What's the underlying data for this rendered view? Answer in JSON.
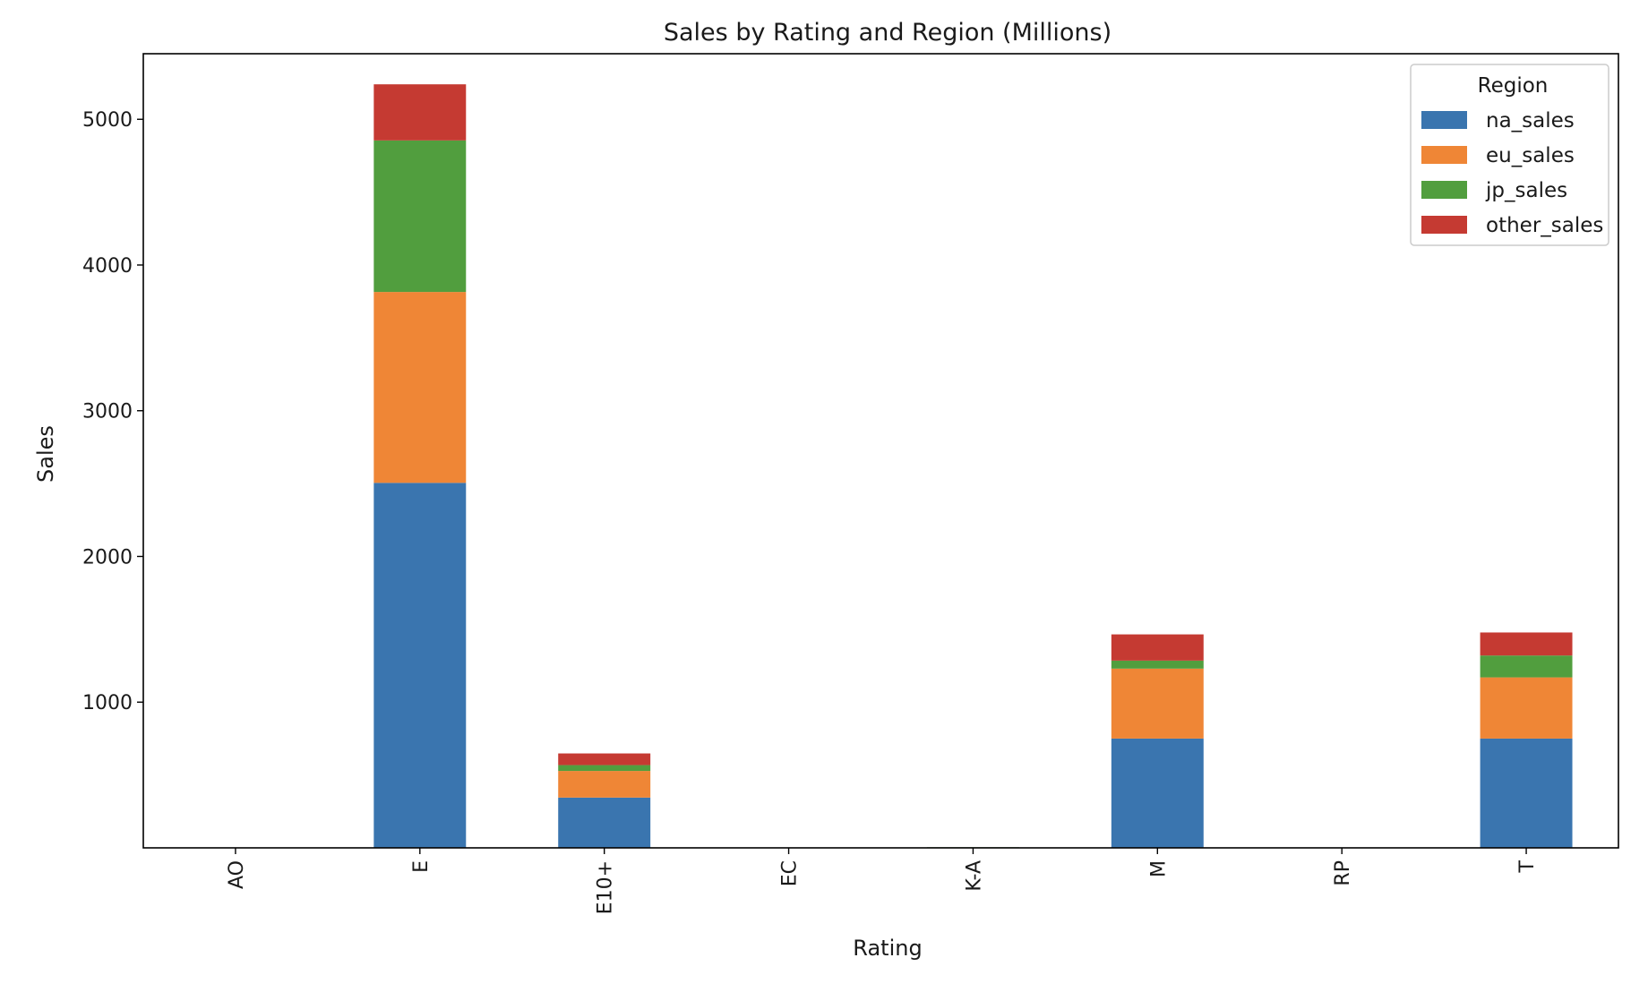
{
  "chart_data": {
    "type": "bar",
    "stacked": true,
    "title": "Sales by Rating and Region (Millions)",
    "xlabel": "Rating",
    "ylabel": "Sales",
    "categories": [
      "AO",
      "E",
      "E10+",
      "EC",
      "K-A",
      "M",
      "RP",
      "T"
    ],
    "y_ticks": [
      1000,
      2000,
      3000,
      4000,
      5000
    ],
    "ylim": [
      0,
      5450
    ],
    "grid": false,
    "legend": {
      "title": "Region",
      "placement": "top-right"
    },
    "series": [
      {
        "name": "na_sales",
        "color": "#3a75af",
        "values": [
          1.3,
          2505,
          345,
          1.5,
          2.6,
          750,
          0.0,
          750
        ]
      },
      {
        "name": "eu_sales",
        "color": "#ef8636",
        "values": [
          0.6,
          1310,
          183,
          0.1,
          0.3,
          480,
          0.0,
          420
        ]
      },
      {
        "name": "jp_sales",
        "color": "#519e3e",
        "values": [
          0.0,
          1040,
          40,
          0.0,
          1.4,
          55,
          0.0,
          150
        ]
      },
      {
        "name": "other_sales",
        "color": "#c53a32",
        "values": [
          0.1,
          385,
          80,
          0.1,
          0.0,
          180,
          0.0,
          158
        ]
      }
    ]
  }
}
